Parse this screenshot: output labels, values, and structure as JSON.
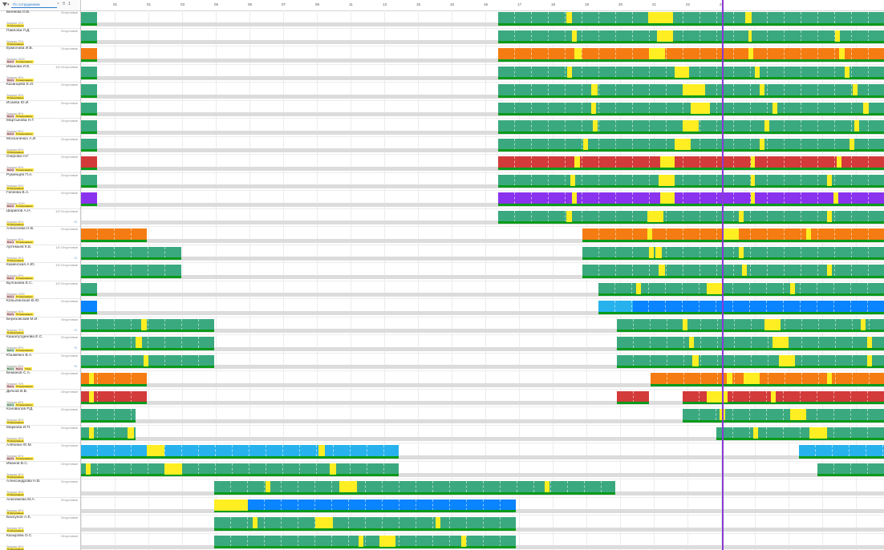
{
  "header": {
    "search_placeholder": "По сотрудникам",
    "filter_caret": "▾",
    "clear_icon": "×",
    "b_icon": "B",
    "count": "1"
  },
  "timeline": {
    "ticks": [
      "01",
      "01",
      "03",
      "05",
      "05",
      "07",
      "09",
      "11",
      "13",
      "15",
      "15",
      "16",
      "17",
      "18",
      "19",
      "20",
      "21",
      "22",
      "23"
    ],
    "now_label": ""
  },
  "colors": {
    "green": "#3ba97f",
    "orange": "#f57c12",
    "red": "#d33a3a",
    "purple": "#8a33ee",
    "blue": "#0a84ff",
    "lightblue": "#27b2ee",
    "yellow": "#ffee22",
    "base": "#0a9a1a",
    "now": "#8a3ad6"
  },
  "employees": [
    {
      "name": "Беляєва О.Б.",
      "status": "Отсутствие",
      "tags": [
        [
          "y",
          "Планирование"
        ]
      ],
      "sub": "Загрузка: 10%",
      "more": ""
    },
    {
      "name": "Павлова Л.Д.",
      "status": "Отсутствие",
      "tags": [
        [
          "y",
          "Планирование"
        ]
      ],
      "sub": "Загрузка: 70%",
      "more": ""
    },
    {
      "name": "Ермолова И.В.",
      "status": "Отсутствие",
      "tags": [
        [
          "r",
          "Вахта"
        ],
        [
          "y",
          "Планирование"
        ]
      ],
      "sub": "Загрузка: 100%",
      "more": ""
    },
    {
      "name": "Иванова И.Е.",
      "status": "1/0 Отсутствие",
      "tags": [
        [
          "r",
          "Вахта"
        ],
        [
          "y",
          "Планирование"
        ]
      ],
      "sub": "Загрузка: 60%",
      "more": ""
    },
    {
      "name": "Казанцева Е.И.",
      "status": "Отсутствие",
      "tags": [
        [
          "y",
          "Планирование"
        ]
      ],
      "sub": "Загрузка: 60%",
      "more": ""
    },
    {
      "name": "Исаева Ю.И.",
      "status": "Отсутствие",
      "tags": [
        [
          "r",
          "Вахта"
        ],
        [
          "y",
          "Планирование"
        ]
      ],
      "sub": "Загрузка: 80%",
      "more": ""
    },
    {
      "name": "Мартынова Н.Г.",
      "status": "Отсутствие",
      "tags": [
        [
          "r",
          "Вахта"
        ],
        [
          "y",
          "Планирование"
        ]
      ],
      "sub": "Загрузка: 60%",
      "more": ""
    },
    {
      "name": "Москаленко А.И.",
      "status": "Отсутствие",
      "tags": [
        [
          "y",
          "Планирование"
        ]
      ],
      "sub": "Загрузка: 60%",
      "more": ""
    },
    {
      "name": "Озерова Н.Г.",
      "status": "Отсутствие",
      "tags": [
        [
          "r",
          "Вахта"
        ],
        [
          "y",
          "Планирование"
        ]
      ],
      "sub": "Загрузка: 60%",
      "more": ""
    },
    {
      "name": "Румянцев П.А.",
      "status": "Отсутствие",
      "tags": [
        [
          "y",
          "Планирование"
        ]
      ],
      "sub": "Загрузка: 60%",
      "more": ""
    },
    {
      "name": "Гапеева В.А.",
      "status": "Отсутствие",
      "tags": [
        [
          "r",
          "Вахта"
        ],
        [
          "y",
          "Планирование"
        ]
      ],
      "sub": "Загрузка: 100%",
      "more": ""
    },
    {
      "name": "Шарипов А.Н.",
      "status": "1/0 Отсутствие",
      "tags": [
        [
          "y",
          "Планирование"
        ]
      ],
      "sub": "Загрузка: 60%",
      "more": "+1"
    },
    {
      "name": "Алексеева Н.В.",
      "status": "Отсутствие",
      "tags": [
        [
          "r",
          "Вахта"
        ],
        [
          "y",
          "Планирование"
        ]
      ],
      "sub": "Загрузка: 80%",
      "more": ""
    },
    {
      "name": "Артемьев К.Б.",
      "status": "1/0 Отсутствие",
      "tags": [
        [
          "y",
          "Планирование"
        ]
      ],
      "sub": "Загрузка: 60%",
      "more": "+1"
    },
    {
      "name": "Каменская А.Ю.",
      "status": "1/0 Отсутствие",
      "tags": [
        [
          "r",
          "Вахта"
        ],
        [
          "y",
          "Планирование"
        ]
      ],
      "sub": "Загрузка: 50%",
      "more": ""
    },
    {
      "name": "Булгакова Е.С.",
      "status": "1/0 Отсутствие",
      "tags": [
        [
          "r",
          "Вахта"
        ],
        [
          "y",
          "Планирование"
        ]
      ],
      "sub": "Загрузка: 100%",
      "more": ""
    },
    {
      "name": "Кобылинская В.Ю.",
      "status": "Отсутствие",
      "tags": [
        [
          "r",
          "Вахта"
        ],
        [
          "y",
          "Планирование"
        ]
      ],
      "sub": "Загрузка: 40%",
      "more": ""
    },
    {
      "name": "Березовский М.И.",
      "status": "Отсутствие",
      "tags": [
        [
          "y",
          "Планирование"
        ]
      ],
      "sub": "Загрузка: 70%",
      "more": "+1"
    },
    {
      "name": "Кашапутдинова Е.С.",
      "status": "Отсутствие",
      "tags": [
        [
          "g",
          "Вахта"
        ],
        [
          "y",
          "Планирование"
        ]
      ],
      "sub": "Загрузка: 60%",
      "more": "+1"
    },
    {
      "name": "Юшменко В.А.",
      "status": "Отсутствие",
      "tags": [
        [
          "g",
          "Вахта"
        ],
        [
          "r",
          "Вахта"
        ],
        [
          "y",
          "План"
        ]
      ],
      "sub": "Загрузка: 60%",
      "more": "+1"
    },
    {
      "name": "Беманов С.А.",
      "status": "Отсутствие",
      "tags": [
        [
          "r",
          "Вахта"
        ],
        [
          "y",
          "Планирование"
        ]
      ],
      "sub": "Загрузка: 70%",
      "more": ""
    },
    {
      "name": "Дичков В.В.",
      "status": "Отсутствие",
      "tags": [
        [
          "g",
          "Вахта"
        ],
        [
          "y",
          "Планирование"
        ]
      ],
      "sub": "Загрузка: 80%",
      "more": ""
    },
    {
      "name": "Коновалов Р.Д.",
      "status": "Отсутствие",
      "tags": [
        [
          "y",
          "Планирование"
        ]
      ],
      "sub": "Загрузка: 60%",
      "more": ""
    },
    {
      "name": "Маркова И.П.",
      "status": "Отсутствие",
      "tags": [
        [
          "y",
          "Планирование"
        ]
      ],
      "sub": "Загрузка: 60%",
      "more": ""
    },
    {
      "name": "Алёхина Ю.М.",
      "status": "Отсутствие",
      "tags": [
        [
          "r",
          "Вахта"
        ],
        [
          "y",
          "Планирование"
        ]
      ],
      "sub": "Загрузка: 60%",
      "more": ""
    },
    {
      "name": "Иванов В.С.",
      "status": "Отсутствие",
      "tags": [
        [
          "y",
          "Планирование"
        ]
      ],
      "sub": "Загрузка: 60%",
      "more": ""
    },
    {
      "name": "Александрова Н.В.",
      "status": "Отсутствие",
      "tags": [
        [
          "y",
          "Планирование"
        ]
      ],
      "sub": "Загрузка: 60%",
      "more": ""
    },
    {
      "name": "Анисимова М.А.",
      "status": "Отсутствие",
      "tags": [
        [
          "y",
          "Планирование"
        ]
      ],
      "sub": "Загрузка: 60%",
      "more": ""
    },
    {
      "name": "Баскунов А.Е.",
      "status": "Отсутствие",
      "tags": [
        [
          "y",
          "Планирование"
        ]
      ],
      "sub": "Загрузка: 60%",
      "more": ""
    },
    {
      "name": "Казырова О.С.",
      "status": "Отсутствие",
      "tags": [
        [
          "y",
          "Планирование"
        ]
      ],
      "sub": "Загрузка: 60%",
      "more": ""
    }
  ],
  "rows": [
    [
      [
        "green",
        0,
        20
      ],
      [
        "green",
        520,
        1001
      ],
      [
        "yellow",
        605,
        612
      ],
      [
        "yellow",
        707,
        738
      ],
      [
        "yellow",
        828,
        836
      ]
    ],
    [
      [
        "green",
        0,
        20
      ],
      [
        "green",
        520,
        1001
      ],
      [
        "yellow",
        612,
        618
      ],
      [
        "yellow",
        718,
        738
      ],
      [
        "yellow",
        832,
        836
      ],
      [
        "yellow",
        940,
        946
      ]
    ],
    [
      [
        "orange",
        0,
        20
      ],
      [
        "orange",
        520,
        1001
      ],
      [
        "yellow",
        615,
        624
      ],
      [
        "yellow",
        708,
        728
      ],
      [
        "yellow",
        832,
        838
      ],
      [
        "yellow",
        945,
        952
      ]
    ],
    [
      [
        "green",
        0,
        20
      ],
      [
        "green",
        520,
        1001
      ],
      [
        "yellow",
        606,
        612
      ],
      [
        "yellow",
        740,
        758
      ],
      [
        "yellow",
        840,
        846
      ],
      [
        "yellow",
        952,
        958
      ]
    ],
    [
      [
        "green",
        0,
        20
      ],
      [
        "green",
        520,
        1001
      ],
      [
        "yellow",
        636,
        644
      ],
      [
        "yellow",
        750,
        778
      ],
      [
        "yellow",
        846,
        852
      ],
      [
        "yellow",
        962,
        968
      ]
    ],
    [
      [
        "green",
        0,
        20
      ],
      [
        "green",
        520,
        1001
      ],
      [
        "yellow",
        636,
        642
      ],
      [
        "yellow",
        760,
        784
      ],
      [
        "yellow",
        862,
        868
      ],
      [
        "yellow",
        975,
        982
      ]
    ],
    [
      [
        "green",
        0,
        20
      ],
      [
        "green",
        520,
        1001
      ],
      [
        "yellow",
        638,
        644
      ],
      [
        "yellow",
        750,
        770
      ],
      [
        "yellow",
        852,
        858
      ],
      [
        "yellow",
        964,
        970
      ]
    ],
    [
      [
        "green",
        0,
        20
      ],
      [
        "green",
        520,
        1001
      ],
      [
        "yellow",
        626,
        632
      ],
      [
        "yellow",
        740,
        760
      ],
      [
        "yellow",
        846,
        852
      ],
      [
        "yellow",
        958,
        964
      ]
    ],
    [
      [
        "red",
        0,
        20
      ],
      [
        "red",
        520,
        1001
      ],
      [
        "yellow",
        615,
        622
      ],
      [
        "yellow",
        722,
        740
      ],
      [
        "yellow",
        835,
        840
      ],
      [
        "yellow",
        942,
        948
      ]
    ],
    [
      [
        "green",
        0,
        20
      ],
      [
        "green",
        520,
        1001
      ],
      [
        "yellow",
        610,
        616
      ],
      [
        "yellow",
        720,
        740
      ],
      [
        "yellow",
        835,
        840
      ],
      [
        "yellow",
        930,
        936
      ]
    ],
    [
      [
        "purple",
        0,
        20
      ],
      [
        "purple",
        520,
        1001
      ],
      [
        "yellow",
        612,
        618
      ],
      [
        "yellow",
        722,
        740
      ],
      [
        "yellow",
        835,
        840
      ],
      [
        "yellow",
        938,
        944
      ]
    ],
    [
      [
        "green",
        520,
        1001
      ],
      [
        "yellow",
        605,
        612
      ],
      [
        "yellow",
        706,
        726
      ],
      [
        "yellow",
        820,
        826
      ],
      [
        "yellow",
        930,
        936
      ]
    ],
    [
      [
        "orange",
        0,
        82
      ],
      [
        "orange",
        625,
        1001
      ],
      [
        "yellow",
        706,
        712
      ],
      [
        "yellow",
        800,
        820
      ],
      [
        "yellow",
        904,
        910
      ]
    ],
    [
      [
        "green",
        0,
        125
      ],
      [
        "green",
        625,
        1001
      ],
      [
        "yellow",
        708,
        714
      ],
      [
        "yellow",
        716,
        724
      ],
      [
        "yellow",
        820,
        826
      ]
    ],
    [
      [
        "green",
        0,
        125
      ],
      [
        "green",
        625,
        1001
      ],
      [
        "yellow",
        720,
        728
      ],
      [
        "yellow",
        824,
        830
      ],
      [
        "yellow",
        930,
        936
      ]
    ],
    [
      [
        "green",
        0,
        20
      ],
      [
        "green",
        645,
        1001
      ],
      [
        "yellow",
        692,
        698
      ],
      [
        "yellow",
        780,
        800
      ],
      [
        "yellow",
        884,
        890
      ]
    ],
    [
      [
        "blue",
        0,
        20
      ],
      [
        "blue",
        645,
        1001
      ],
      [
        "lightblue",
        645,
        688
      ]
    ],
    [
      [
        "green",
        0,
        166
      ],
      [
        "green",
        668,
        1001
      ],
      [
        "yellow",
        75,
        82
      ],
      [
        "yellow",
        750,
        756
      ],
      [
        "yellow",
        852,
        872
      ],
      [
        "yellow",
        972,
        978
      ]
    ],
    [
      [
        "green",
        0,
        166
      ],
      [
        "green",
        668,
        1001
      ],
      [
        "yellow",
        68,
        76
      ],
      [
        "yellow",
        758,
        764
      ],
      [
        "yellow",
        862,
        882
      ],
      [
        "yellow",
        980,
        986
      ]
    ],
    [
      [
        "green",
        0,
        166
      ],
      [
        "green",
        668,
        1001
      ],
      [
        "yellow",
        78,
        84
      ],
      [
        "yellow",
        762,
        770
      ],
      [
        "yellow",
        870,
        890
      ],
      [
        "yellow",
        980,
        986
      ]
    ],
    [
      [
        "orange",
        0,
        82
      ],
      [
        "orange",
        710,
        1001
      ],
      [
        "yellow",
        10,
        16
      ],
      [
        "yellow",
        805,
        812
      ],
      [
        "yellow",
        826,
        846
      ],
      [
        "yellow",
        930,
        936
      ]
    ],
    [
      [
        "red",
        0,
        82
      ],
      [
        "red",
        668,
        708
      ],
      [
        "red",
        750,
        1001
      ],
      [
        "yellow",
        10,
        16
      ],
      [
        "yellow",
        780,
        806
      ],
      [
        "yellow",
        860,
        866
      ]
    ],
    [
      [
        "green",
        0,
        68
      ],
      [
        "green",
        750,
        1001
      ],
      [
        "yellow",
        796,
        803
      ],
      [
        "yellow",
        884,
        904
      ]
    ],
    [
      [
        "green",
        0,
        68
      ],
      [
        "green",
        792,
        1001
      ],
      [
        "yellow",
        10,
        16
      ],
      [
        "yellow",
        58,
        66
      ],
      [
        "yellow",
        838,
        844
      ],
      [
        "yellow",
        908,
        930
      ]
    ],
    [
      [
        "lightblue",
        0,
        396
      ],
      [
        "lightblue",
        895,
        1001
      ],
      [
        "yellow",
        82,
        104
      ],
      [
        "yellow",
        296,
        304
      ]
    ],
    [
      [
        "green",
        0,
        396
      ],
      [
        "green",
        918,
        1001
      ],
      [
        "yellow",
        6,
        12
      ],
      [
        "yellow",
        104,
        126
      ],
      [
        "yellow",
        310,
        318
      ]
    ],
    [
      [
        "green",
        166,
        666
      ],
      [
        "yellow",
        230,
        236
      ],
      [
        "yellow",
        322,
        344
      ],
      [
        "yellow",
        578,
        584
      ]
    ],
    [
      [
        "blue",
        166,
        542
      ],
      [
        "yellow",
        166,
        208
      ]
    ],
    [
      [
        "green",
        166,
        542
      ],
      [
        "yellow",
        214,
        220
      ],
      [
        "yellow",
        292,
        314
      ],
      [
        "yellow",
        442,
        448
      ]
    ],
    [
      [
        "green",
        166,
        542
      ],
      [
        "yellow",
        346,
        352
      ],
      [
        "yellow",
        372,
        392
      ],
      [
        "yellow",
        474,
        480
      ]
    ]
  ]
}
